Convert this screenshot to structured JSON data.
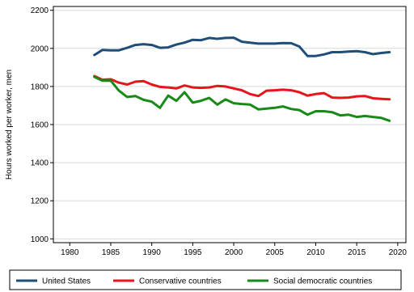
{
  "chart_data": {
    "type": "line",
    "ylabel": "Hours worked per worker, men",
    "xlabel": "",
    "xlim": [
      1978,
      2021
    ],
    "ylim": [
      980,
      2220
    ],
    "x_ticks": [
      1980,
      1985,
      1990,
      1995,
      2000,
      2005,
      2010,
      2015,
      2020
    ],
    "y_ticks": [
      1000,
      1200,
      1400,
      1600,
      1800,
      2000,
      2200
    ],
    "grid": "horizontal",
    "legend_position": "bottom",
    "x": [
      1983,
      1984,
      1985,
      1986,
      1987,
      1988,
      1989,
      1990,
      1991,
      1992,
      1993,
      1994,
      1995,
      1996,
      1997,
      1998,
      1999,
      2000,
      2001,
      2002,
      2003,
      2004,
      2005,
      2006,
      2007,
      2008,
      2009,
      2010,
      2011,
      2012,
      2013,
      2014,
      2015,
      2016,
      2017,
      2018,
      2019
    ],
    "series": [
      {
        "name": "United States",
        "color": "#1f4e79",
        "values": [
          1965,
          1992,
          1990,
          1990,
          2003,
          2018,
          2022,
          2018,
          2003,
          2005,
          2020,
          2030,
          2045,
          2043,
          2055,
          2050,
          2055,
          2056,
          2035,
          2030,
          2025,
          2025,
          2025,
          2028,
          2027,
          2010,
          1960,
          1960,
          1968,
          1980,
          1980,
          1983,
          1985,
          1980,
          1970,
          1976,
          1980
        ]
      },
      {
        "name": "Conservative countries",
        "color": "#e8141c",
        "values": [
          1855,
          1835,
          1838,
          1820,
          1810,
          1825,
          1828,
          1810,
          1798,
          1795,
          1790,
          1805,
          1795,
          1793,
          1795,
          1803,
          1800,
          1790,
          1780,
          1760,
          1750,
          1778,
          1780,
          1783,
          1780,
          1770,
          1752,
          1760,
          1765,
          1742,
          1740,
          1742,
          1748,
          1750,
          1738,
          1735,
          1733
        ]
      },
      {
        "name": "Social democratic countries",
        "color": "#178a17",
        "values": [
          1850,
          1830,
          1830,
          1778,
          1745,
          1750,
          1730,
          1720,
          1688,
          1752,
          1725,
          1770,
          1715,
          1725,
          1740,
          1705,
          1732,
          1712,
          1708,
          1705,
          1680,
          1684,
          1688,
          1695,
          1682,
          1676,
          1652,
          1670,
          1670,
          1665,
          1648,
          1652,
          1640,
          1645,
          1640,
          1635,
          1620
        ]
      }
    ]
  }
}
